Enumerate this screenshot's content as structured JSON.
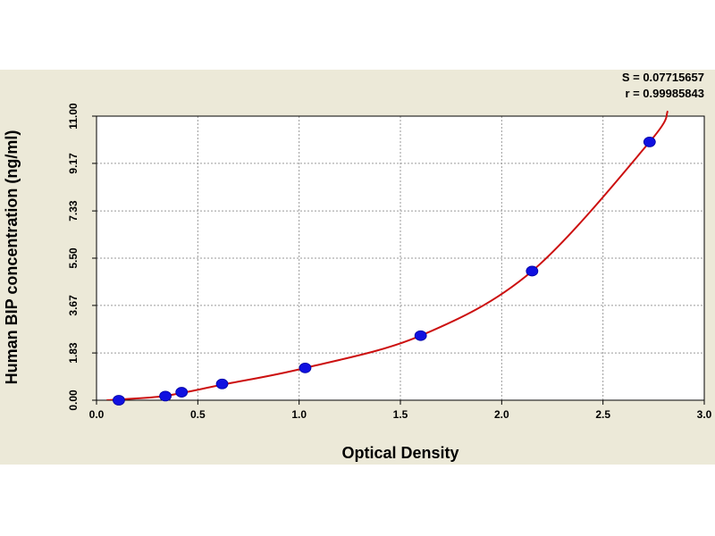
{
  "chart_data": {
    "type": "scatter",
    "title": "",
    "xlabel": "Optical Density",
    "ylabel": "Human BIP concentration (ng/ml)",
    "xlim": [
      0.0,
      3.0
    ],
    "ylim": [
      0.0,
      11.0
    ],
    "x_ticks": [
      "0.0",
      "0.5",
      "1.0",
      "1.5",
      "2.0",
      "2.5",
      "3.0"
    ],
    "y_ticks": [
      "0.00",
      "1.83",
      "3.67",
      "5.50",
      "7.33",
      "9.17",
      "11.00"
    ],
    "stats": [
      "S = 0.07715657",
      "r = 0.99985843"
    ],
    "grid": true,
    "series": [
      {
        "type": "scatter",
        "color": "#1010e0",
        "points": [
          {
            "x": 0.11,
            "y": 0.0
          },
          {
            "x": 0.34,
            "y": 0.16
          },
          {
            "x": 0.42,
            "y": 0.31
          },
          {
            "x": 0.62,
            "y": 0.63
          },
          {
            "x": 1.03,
            "y": 1.25
          },
          {
            "x": 1.6,
            "y": 2.5
          },
          {
            "x": 2.15,
            "y": 5.0
          },
          {
            "x": 2.73,
            "y": 10.0
          }
        ]
      },
      {
        "type": "line",
        "color": "#cc1010",
        "fit": true,
        "points": [
          {
            "x": 0.05,
            "y": 0.0
          },
          {
            "x": 0.11,
            "y": 0.03
          },
          {
            "x": 0.34,
            "y": 0.17
          },
          {
            "x": 0.62,
            "y": 0.6
          },
          {
            "x": 1.03,
            "y": 1.25
          },
          {
            "x": 1.6,
            "y": 2.5
          },
          {
            "x": 2.15,
            "y": 5.0
          },
          {
            "x": 2.73,
            "y": 10.0
          },
          {
            "x": 2.82,
            "y": 11.2
          }
        ]
      }
    ]
  }
}
